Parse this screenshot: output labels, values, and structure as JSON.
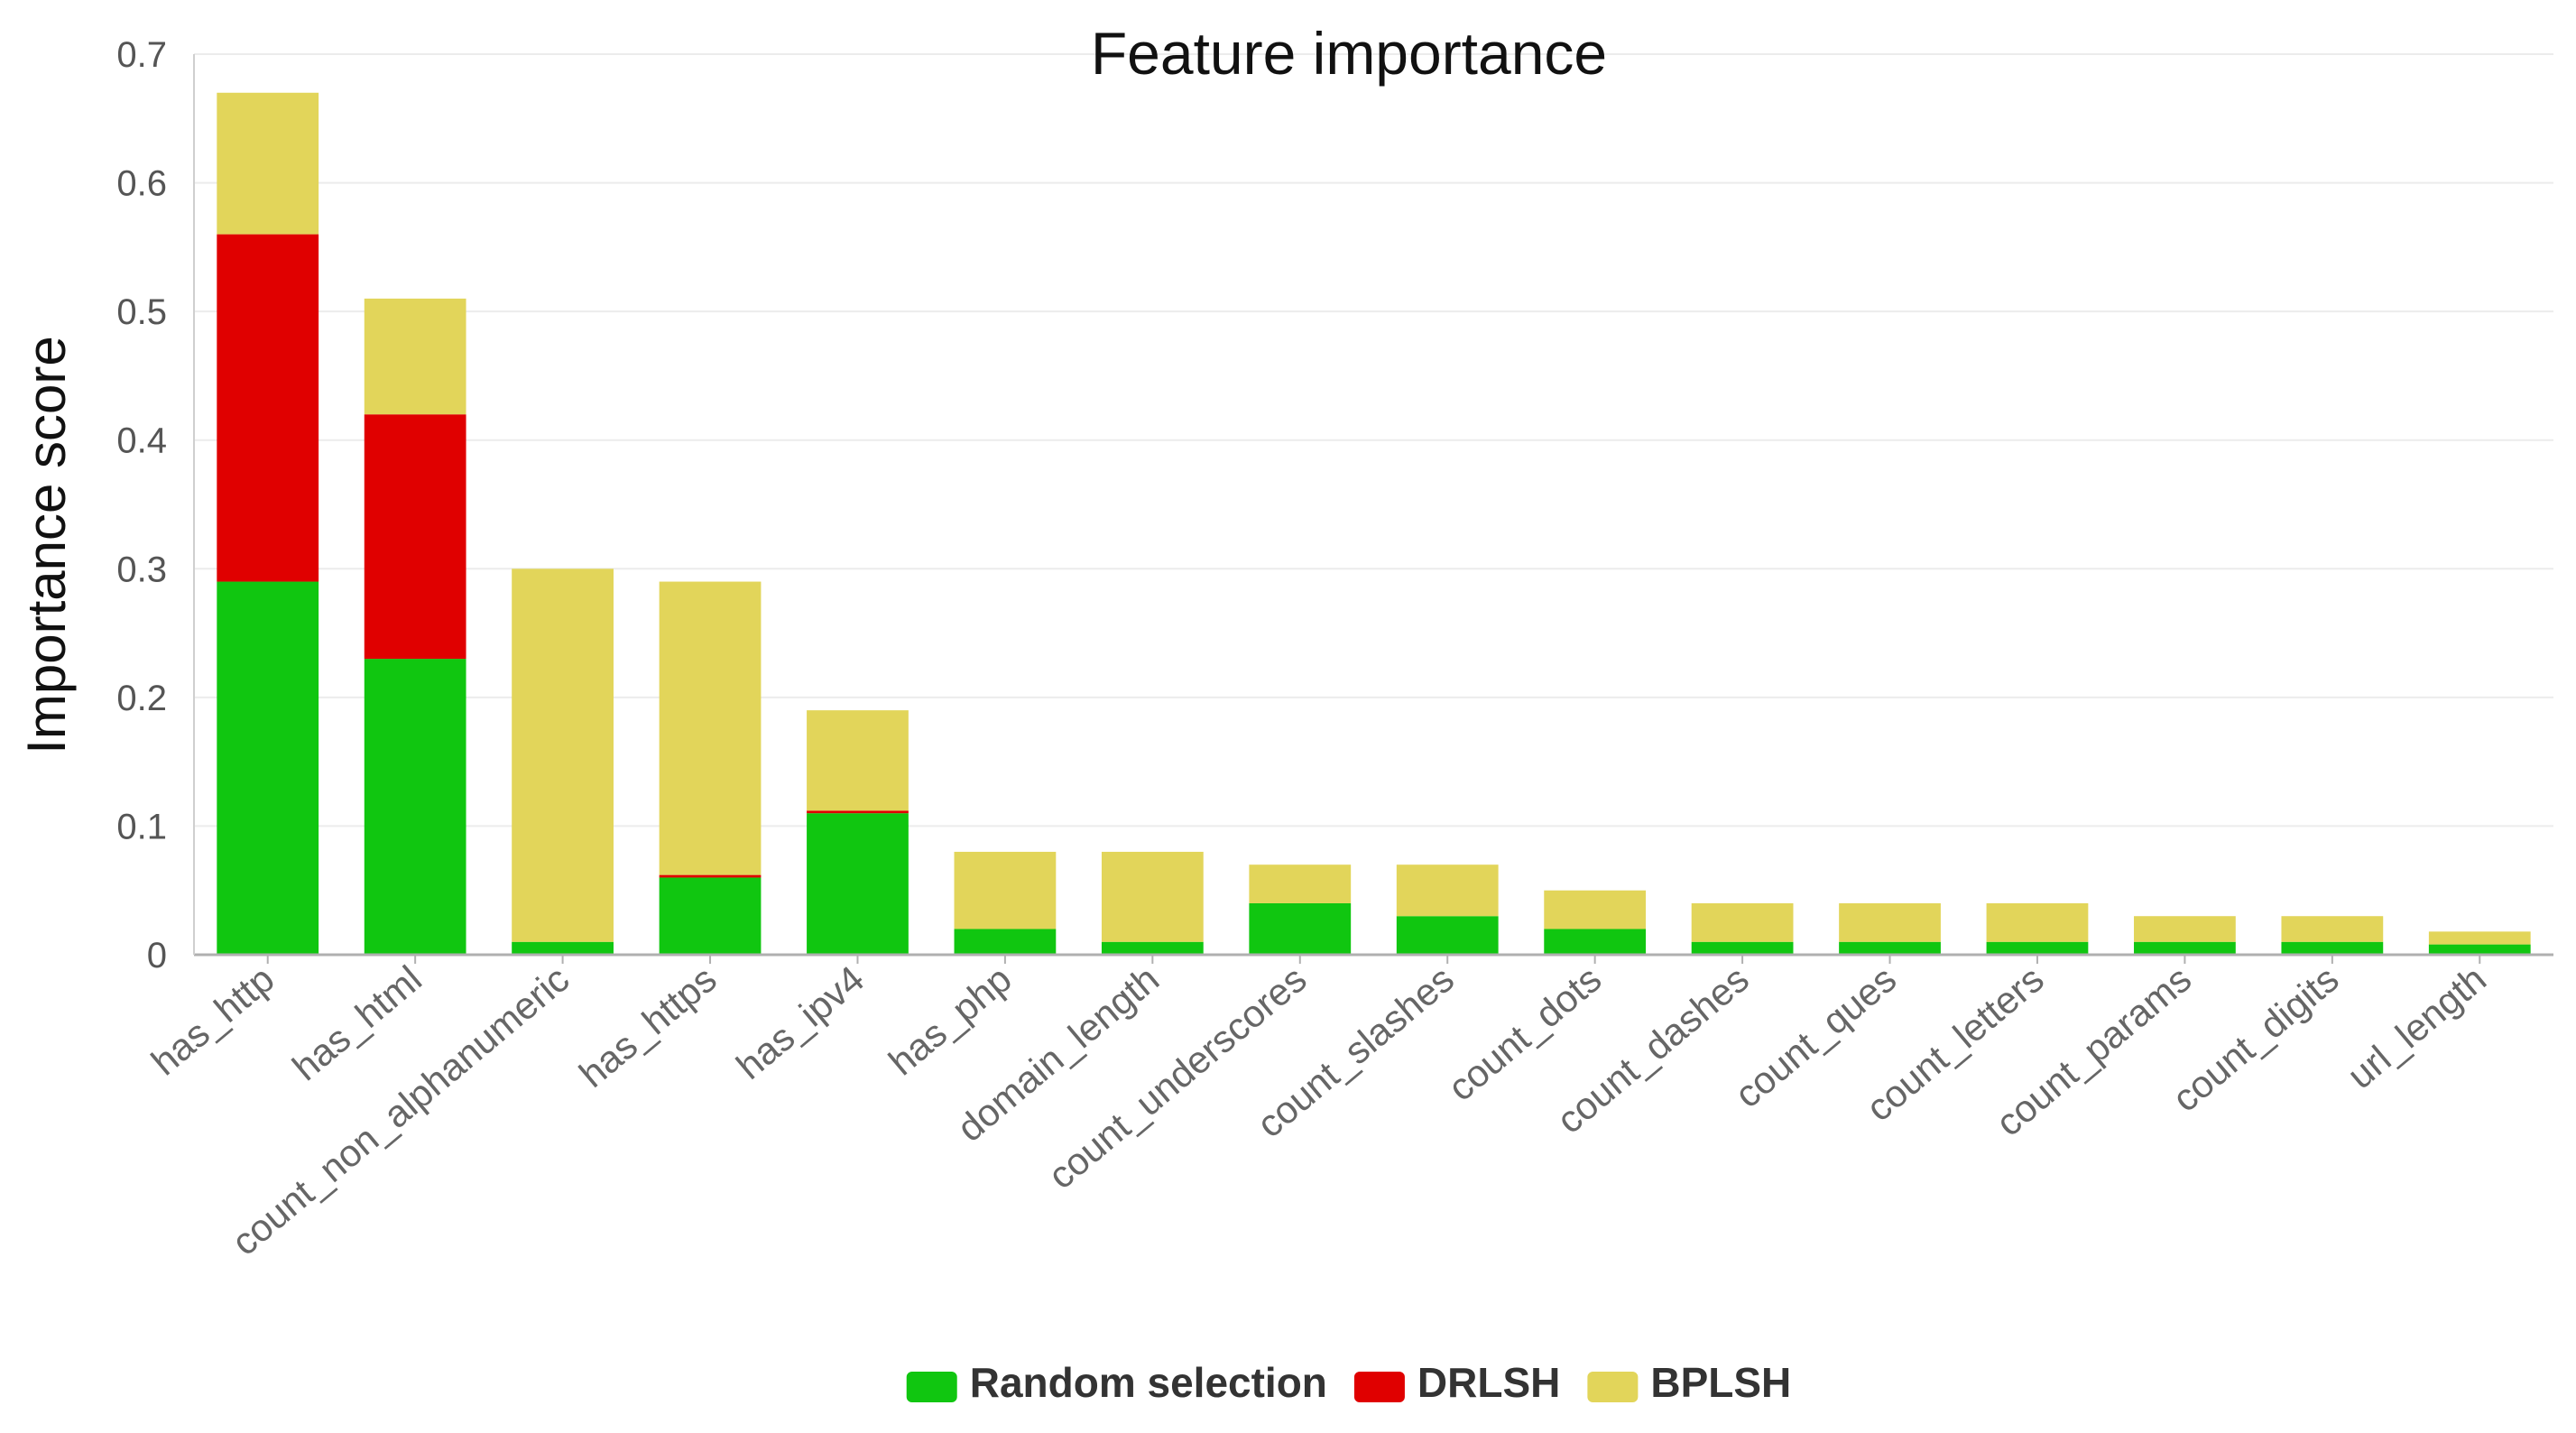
{
  "chart_data": {
    "type": "bar",
    "stacked": true,
    "title": "Feature importance",
    "xlabel": "",
    "ylabel": "Importance score",
    "ylim": [
      0,
      0.7
    ],
    "yticks": [
      0,
      0.1,
      0.2,
      0.3,
      0.4,
      0.5,
      0.6,
      0.7
    ],
    "ytick_labels": [
      "0",
      "0.1",
      "0.2",
      "0.3",
      "0.4",
      "0.5",
      "0.6",
      "0.7"
    ],
    "grid": true,
    "legend_position": "bottom-center",
    "categories": [
      "has_http",
      "has_html",
      "count_non_alphanumeric",
      "has_https",
      "has_ipv4",
      "has_php",
      "domain_length",
      "count_underscores",
      "count_slashes",
      "count_dots",
      "count_dashes",
      "count_ques",
      "count_letters",
      "count_params",
      "count_digits",
      "url_length"
    ],
    "series": [
      {
        "name": "Random selection",
        "color": "#10c610",
        "values": [
          0.29,
          0.23,
          0.01,
          0.06,
          0.11,
          0.02,
          0.01,
          0.04,
          0.03,
          0.02,
          0.01,
          0.01,
          0.01,
          0.01,
          0.01,
          0.008
        ]
      },
      {
        "name": "DRLSH",
        "color": "#e00000",
        "values": [
          0.27,
          0.19,
          0.0,
          0.002,
          0.002,
          0.0,
          0.0,
          0.0,
          0.0,
          0.0,
          0.0,
          0.0,
          0.0,
          0.0,
          0.0,
          0.0
        ]
      },
      {
        "name": "BPLSH",
        "color": "#e2d55a",
        "values": [
          0.11,
          0.09,
          0.29,
          0.228,
          0.078,
          0.06,
          0.07,
          0.03,
          0.04,
          0.03,
          0.03,
          0.03,
          0.03,
          0.02,
          0.02,
          0.01
        ]
      }
    ]
  }
}
